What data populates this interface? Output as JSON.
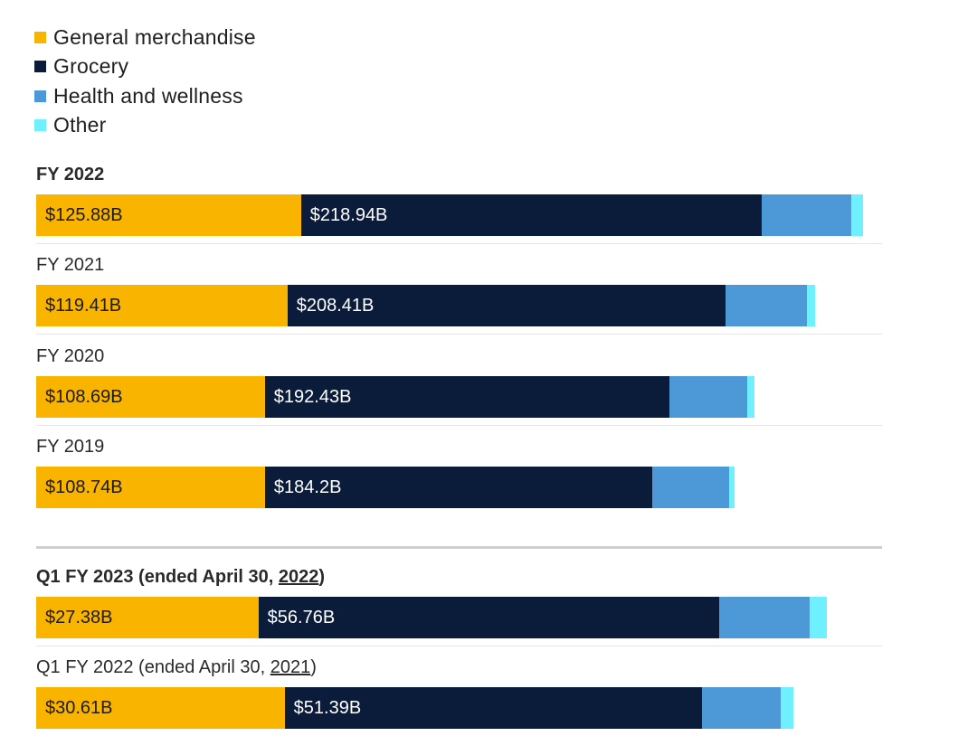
{
  "chart_data": {
    "type": "bar",
    "orientation": "horizontal",
    "stacked": true,
    "title": "",
    "series": [
      {
        "name": "General merchandise",
        "color": "#f9b400",
        "values": [
          125.88,
          119.41,
          108.69,
          108.74,
          27.38,
          30.61
        ]
      },
      {
        "name": "Grocery",
        "color": "#0b1c3a",
        "values": [
          218.94,
          208.41,
          192.43,
          184.2,
          56.76,
          51.39
        ]
      },
      {
        "name": "Health and wellness",
        "color": "#4d98d6",
        "values": [
          42.5,
          38.6,
          36.9,
          36.4,
          11.1,
          9.7
        ]
      },
      {
        "name": "Other",
        "color": "#6ff0ff",
        "values": [
          5.5,
          3.6,
          3.5,
          2.6,
          2.2,
          1.6
        ]
      }
    ],
    "categories": [
      "FY 2022",
      "FY 2021",
      "FY 2020",
      "FY 2019",
      "Q1 FY 2023 (ended April 30, 2022)",
      "Q1 FY 2022 (ended April 30, 2021)"
    ],
    "data_labels": [
      [
        "$125.88B",
        "$218.94B"
      ],
      [
        "$119.41B",
        "$208.41B"
      ],
      [
        "$108.69B",
        "$192.43B"
      ],
      [
        "$108.74B",
        "$184.2B"
      ],
      [
        "$27.38B",
        "$56.76B"
      ],
      [
        "$30.61B",
        "$51.39B"
      ]
    ],
    "groups": [
      {
        "name": "annual",
        "scale_max": 402.0
      },
      {
        "name": "quarterly",
        "scale_max": 104.2
      }
    ]
  },
  "rows": [
    {
      "title_pre": "FY 2022",
      "title_date": "",
      "title_post": "",
      "bold": true
    },
    {
      "title_pre": "FY 2021",
      "title_date": "",
      "title_post": "",
      "bold": false
    },
    {
      "title_pre": "FY 2020",
      "title_date": "",
      "title_post": "",
      "bold": false
    },
    {
      "title_pre": "FY 2019",
      "title_date": "",
      "title_post": "",
      "bold": false
    },
    {
      "title_pre": "Q1 FY 2023 (ended April 30, ",
      "title_date": "2022",
      "title_post": ")",
      "bold": true
    },
    {
      "title_pre": "Q1 FY 2022 (ended April 30, ",
      "title_date": "2021",
      "title_post": ")",
      "bold": false
    }
  ]
}
